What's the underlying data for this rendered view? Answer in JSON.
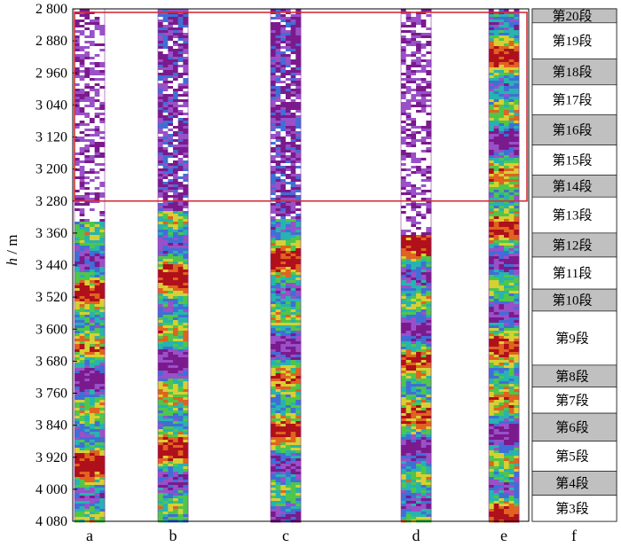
{
  "chart_data": {
    "type": "heatmap",
    "title": "",
    "ylabel": "h / m",
    "ylabel_italic_part": "h",
    "ylabel_unit_part": " / m",
    "ylim": [
      2800,
      4080
    ],
    "y_reversed": true,
    "yticks": [
      2800,
      2880,
      2960,
      3040,
      3120,
      3200,
      3280,
      3360,
      3440,
      3520,
      3600,
      3680,
      3760,
      3840,
      3920,
      4000,
      4080
    ],
    "ytick_labels": [
      "2 800",
      "2 880",
      "2 960",
      "3 040",
      "3 120",
      "3 200",
      "3 280",
      "3 360",
      "3 440",
      "3 520",
      "3 600",
      "3 680",
      "3 760",
      "3 840",
      "3 920",
      "4 000",
      "4 080"
    ],
    "tracks": [
      {
        "label": "a",
        "top_depth": 2800,
        "purple_until": 3330
      },
      {
        "label": "b",
        "top_depth": 2800,
        "purple_until": 3300
      },
      {
        "label": "c",
        "top_depth": 2800,
        "purple_until": 3320
      },
      {
        "label": "d",
        "top_depth": 2800,
        "purple_until": 3360
      },
      {
        "label": "e",
        "top_depth": 2800,
        "purple_until": 2810
      }
    ],
    "segment_track_label": "f",
    "segments": [
      {
        "label": "第20段",
        "top": 2800,
        "bottom": 2835,
        "shaded": true
      },
      {
        "label": "第19段",
        "top": 2835,
        "bottom": 2925,
        "shaded": false
      },
      {
        "label": "第18段",
        "top": 2925,
        "bottom": 2990,
        "shaded": true
      },
      {
        "label": "第17段",
        "top": 2990,
        "bottom": 3065,
        "shaded": false
      },
      {
        "label": "第16段",
        "top": 3065,
        "bottom": 3140,
        "shaded": true
      },
      {
        "label": "第15段",
        "top": 3140,
        "bottom": 3215,
        "shaded": false
      },
      {
        "label": "第14段",
        "top": 3215,
        "bottom": 3270,
        "shaded": true
      },
      {
        "label": "第13段",
        "top": 3270,
        "bottom": 3360,
        "shaded": false
      },
      {
        "label": "第12段",
        "top": 3360,
        "bottom": 3420,
        "shaded": true
      },
      {
        "label": "第11段",
        "top": 3420,
        "bottom": 3500,
        "shaded": false
      },
      {
        "label": "第10段",
        "top": 3500,
        "bottom": 3555,
        "shaded": true
      },
      {
        "label": "第9段",
        "top": 3555,
        "bottom": 3690,
        "shaded": false
      },
      {
        "label": "第8段",
        "top": 3690,
        "bottom": 3745,
        "shaded": true
      },
      {
        "label": "第7段",
        "top": 3745,
        "bottom": 3810,
        "shaded": false
      },
      {
        "label": "第6段",
        "top": 3810,
        "bottom": 3880,
        "shaded": true
      },
      {
        "label": "第5段",
        "top": 3880,
        "bottom": 3955,
        "shaded": false
      },
      {
        "label": "第4段",
        "top": 3955,
        "bottom": 4015,
        "shaded": true
      },
      {
        "label": "第3段",
        "top": 4015,
        "bottom": 4080,
        "shaded": false
      }
    ],
    "highlight_box": {
      "top": 2800,
      "bottom": 3280,
      "color": "#d0303a"
    },
    "colormap": [
      "#7a1a8c",
      "#9a50c8",
      "#3f6fd6",
      "#27b3b0",
      "#4fc64a",
      "#d8cf33",
      "#e0631f",
      "#b0101a"
    ]
  }
}
